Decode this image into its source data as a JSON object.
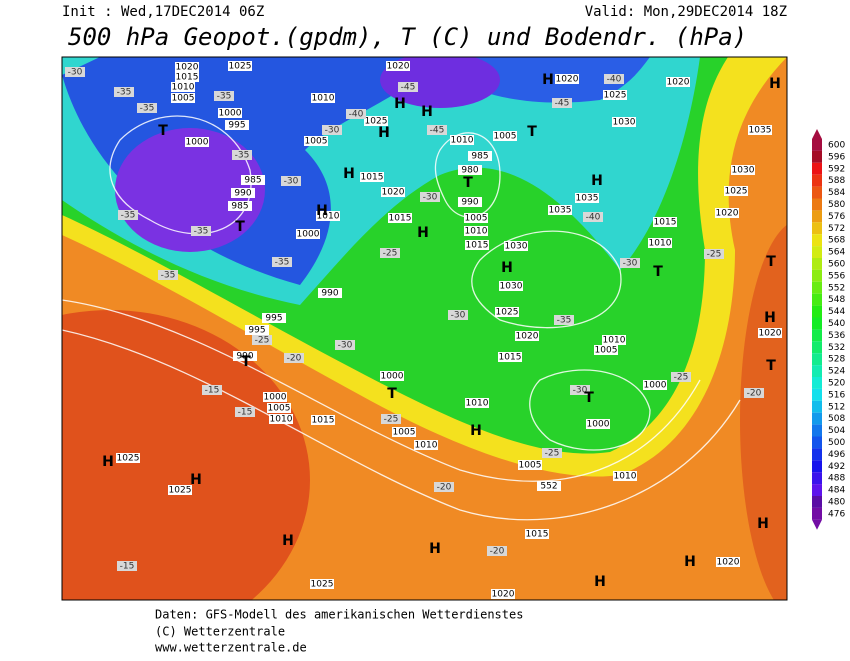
{
  "header": {
    "init": "Init : Wed,17DEC2014 06Z",
    "valid": "Valid: Mon,29DEC2014 18Z",
    "title": "500 hPa Geopot.(gpdm), T (C) und Bodendr. (hPa)"
  },
  "footer": {
    "line1": "Daten: GFS-Modell des amerikanischen Wetterdienstes",
    "line2": "(C) Wetterzentrale",
    "line3": "www.wetterzentrale.de"
  },
  "colorbar": {
    "values": [
      600,
      596,
      592,
      588,
      584,
      580,
      576,
      572,
      568,
      564,
      560,
      556,
      552,
      548,
      544,
      540,
      536,
      532,
      528,
      524,
      520,
      516,
      512,
      508,
      504,
      500,
      496,
      492,
      488,
      484,
      480,
      476
    ]
  },
  "map": {
    "pressure_labels": [
      1020,
      1015,
      1010,
      1005,
      1025,
      1020,
      1010,
      1000,
      995,
      1000,
      1005,
      1025,
      985,
      990,
      985,
      1010,
      1015,
      1000,
      1020,
      1015,
      1020,
      1025,
      1020,
      1030,
      1005,
      1010,
      985,
      980,
      990,
      1005,
      1010,
      1015,
      1030,
      1035,
      1035,
      1015,
      1010,
      1030,
      1035,
      1025,
      1020,
      990,
      995,
      995,
      990,
      1000,
      1000,
      1005,
      1010,
      1015,
      1005,
      1010,
      1030,
      1025,
      1020,
      1015,
      1010,
      1010,
      1005,
      1000,
      1000,
      1005,
      1010,
      1015,
      1025,
      1025,
      1025,
      1020,
      1020,
      1020,
      552
    ],
    "temperature_labels": [
      -30,
      -35,
      -35,
      -35,
      -30,
      -35,
      -35,
      -35,
      -35,
      -25,
      -20,
      -30,
      -15,
      -15,
      -25,
      -30,
      -25,
      -30,
      -35,
      -30,
      -25,
      -40,
      -45,
      -45,
      -40,
      -30,
      -25,
      -20,
      -20,
      -15,
      -20,
      -25,
      -35,
      -30,
      -40,
      -45
    ],
    "centers": [
      "T",
      "T",
      "T",
      "T",
      "T",
      "T",
      "T",
      "T",
      "T",
      "T",
      "H",
      "H",
      "H",
      "H",
      "H",
      "H",
      "H",
      "H",
      "H",
      "H",
      "H",
      "H",
      "H",
      "H",
      "H",
      "H",
      "H",
      "H",
      "H"
    ]
  }
}
